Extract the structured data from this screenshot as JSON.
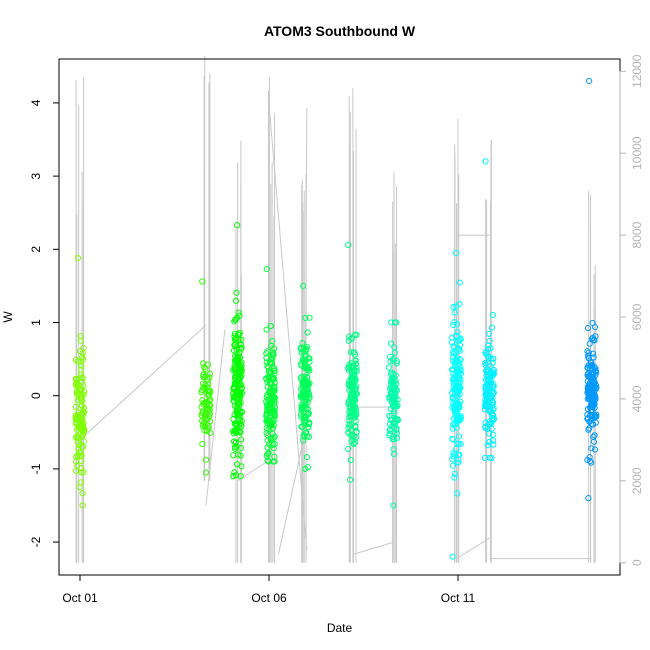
{
  "chart_data": {
    "type": "scatter",
    "title": "ATOM3 Southbound W",
    "xlabel": "Date",
    "ylabel": "W",
    "x_ticks": [
      "Oct 01",
      "Oct 06",
      "Oct 11"
    ],
    "y_ticks": [
      "-2",
      "-1",
      "0",
      "1",
      "2",
      "3",
      "4"
    ],
    "y_ticks_right": [
      "0",
      "2000",
      "4000",
      "6000",
      "8000",
      "10000",
      "12000"
    ],
    "ylim": [
      -2.45,
      4.6
    ],
    "ylim_right": [
      -300,
      12300
    ],
    "colors": {
      "points": [
        "#7fff00",
        "#00ff00",
        "#00ff7f",
        "#00ffff",
        "#0099ff"
      ],
      "line": "#c8c8c8",
      "right_axis": "#b4b4b4"
    },
    "clusters": [
      {
        "x": "2013-10-01 00:00",
        "center": -0.2,
        "spread": 0.45,
        "min": -1.5,
        "max": 1.88,
        "color": "#7fff00",
        "n": 110
      },
      {
        "x": "2013-10-04 08:00",
        "center": -0.1,
        "spread": 0.28,
        "min": -1.05,
        "max": 1.56,
        "color": "#33ff00",
        "n": 70
      },
      {
        "x": "2013-10-05 04:00",
        "center": 0.1,
        "spread": 0.5,
        "min": -1.1,
        "max": 2.33,
        "color": "#00ff00",
        "n": 170
      },
      {
        "x": "2013-10-06 01:00",
        "center": -0.05,
        "spread": 0.4,
        "min": -0.9,
        "max": 1.73,
        "color": "#00ff33",
        "n": 140
      },
      {
        "x": "2013-10-06 23:00",
        "center": 0.05,
        "spread": 0.4,
        "min": -1.0,
        "max": 1.5,
        "color": "#00ff5a",
        "n": 130
      },
      {
        "x": "2013-10-08 05:00",
        "center": 0.0,
        "spread": 0.4,
        "min": -1.15,
        "max": 2.06,
        "color": "#00ff88",
        "n": 130
      },
      {
        "x": "2013-10-09 07:00",
        "center": 0.0,
        "spread": 0.35,
        "min": -1.5,
        "max": 1.0,
        "color": "#00ffaa",
        "n": 100
      },
      {
        "x": "2013-10-10 23:00",
        "center": 0.0,
        "spread": 0.5,
        "min": -2.2,
        "max": 1.95,
        "color": "#00ffff",
        "n": 150
      },
      {
        "x": "2013-10-11 20:00",
        "center": 0.05,
        "spread": 0.4,
        "min": -0.85,
        "max": 3.2,
        "color": "#00f0ff",
        "n": 130
      },
      {
        "x": "2013-10-14 13:00",
        "center": 0.1,
        "spread": 0.35,
        "min": -1.4,
        "max": 4.3,
        "color": "#0099ff",
        "n": 160
      }
    ],
    "line_spans": [
      {
        "x": "2013-10-01 00:00",
        "low": 0,
        "high": 12000
      },
      {
        "x": "2013-10-04 08:00",
        "low": 2000,
        "high": 12500
      },
      {
        "x": "2013-10-05 04:00",
        "low": 0,
        "high": 10500
      },
      {
        "x": "2013-10-06 01:00",
        "low": 0,
        "high": 12300
      },
      {
        "x": "2013-10-06 23:00",
        "low": 0,
        "high": 11500
      },
      {
        "x": "2013-10-08 05:00",
        "low": 0,
        "high": 12000
      },
      {
        "x": "2013-10-09 07:00",
        "low": 0,
        "high": 9800
      },
      {
        "x": "2013-10-10 23:00",
        "low": 0,
        "high": 11700
      },
      {
        "x": "2013-10-11 20:00",
        "low": 0,
        "high": 10500
      },
      {
        "x": "2013-10-14 13:00",
        "low": 0,
        "high": 9500
      }
    ],
    "connectors": [
      {
        "x": "2013-10-01 00:00",
        "y": 3000
      },
      {
        "x": "2013-10-04 08:00",
        "y": 5800
      },
      {
        "x": "2013-10-04 20:00",
        "y": 5700
      },
      {
        "x": "2013-10-04 08:00",
        "y": 1400
      },
      {
        "x": "2013-10-05 04:00",
        "y": 2000
      },
      {
        "x": "2013-10-06 00:00",
        "y": 2500
      },
      {
        "x": "2013-10-06 23:00",
        "y": 3200
      },
      {
        "x": "2013-10-06 06:00",
        "y": 200
      },
      {
        "x": "2013-10-07 00:00",
        "y": 300
      },
      {
        "x": "2013-10-06 00:00",
        "y": 11200
      },
      {
        "x": "2013-10-07 00:00",
        "y": 11100
      },
      {
        "x": "2013-10-06 23:00",
        "y": 3500
      },
      {
        "x": "2013-10-08 05:00",
        "y": 3800
      },
      {
        "x": "2013-10-09 07:00",
        "y": 3800
      },
      {
        "x": "2013-10-08 05:00",
        "y": 200
      },
      {
        "x": "2013-10-09 07:00",
        "y": 500
      },
      {
        "x": "2013-10-10 23:00",
        "y": 8000
      },
      {
        "x": "2013-10-11 20:00",
        "y": 8000
      },
      {
        "x": "2013-10-10 23:00",
        "y": 100
      },
      {
        "x": "2013-10-11 20:00",
        "y": 600
      },
      {
        "x": "2013-10-11 20:00",
        "y": 100
      },
      {
        "x": "2013-10-14 13:00",
        "y": 100
      }
    ]
  }
}
